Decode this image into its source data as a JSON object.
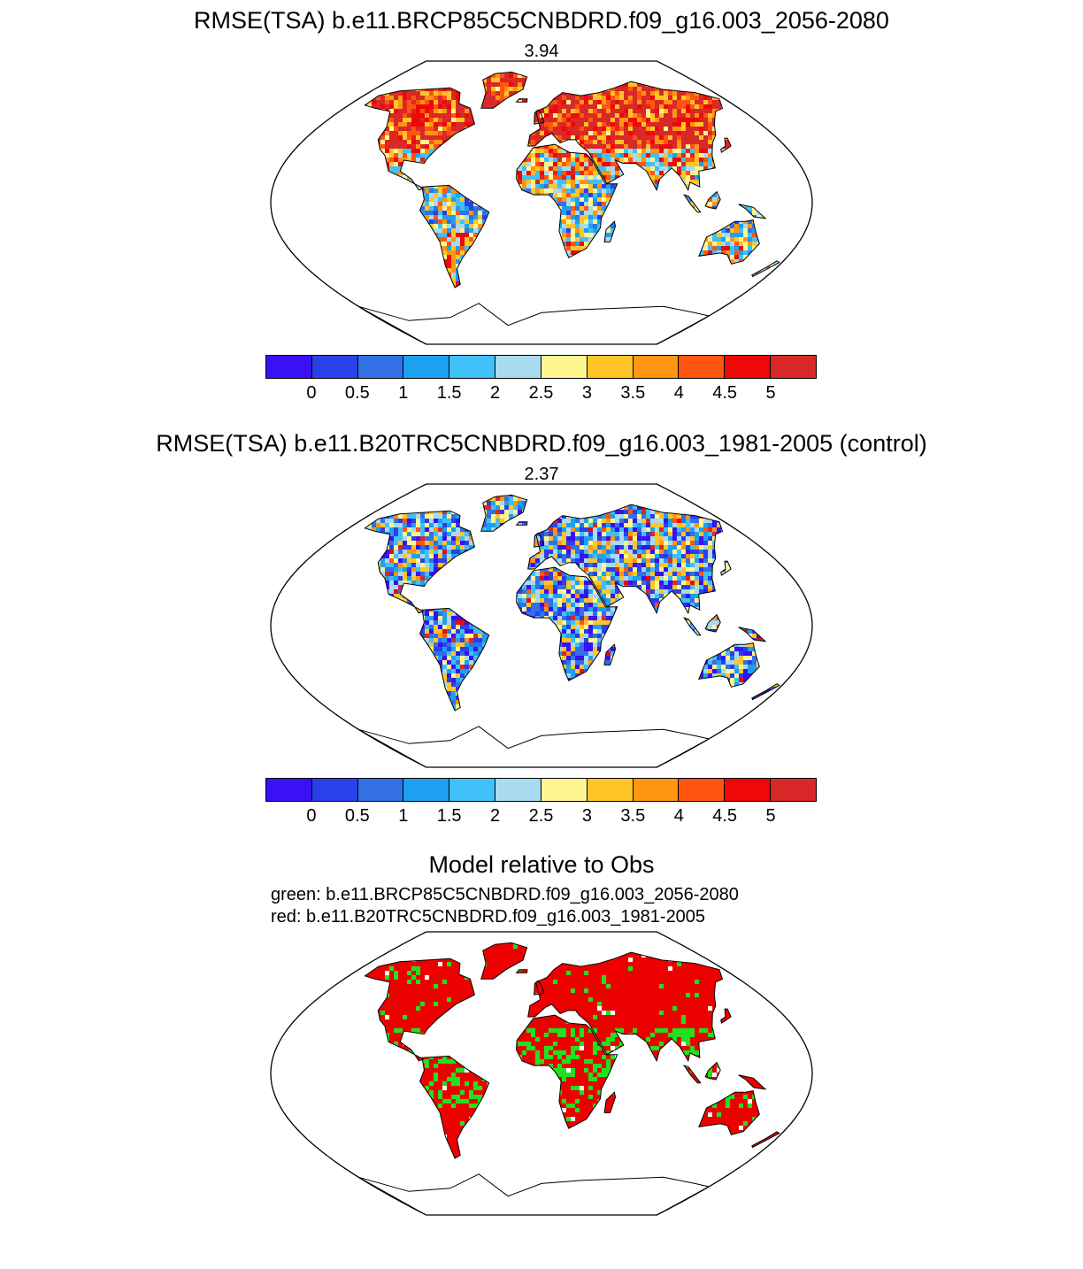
{
  "panels": [
    {
      "title": "RMSE(TSA) b.e11.BRCP85C5CNBDRD.f09_g16.003_2056-2080",
      "value": "3.94",
      "scheme": "future"
    },
    {
      "title": "RMSE(TSA) b.e11.B20TRC5CNBDRD.f09_g16.003_1981-2005 (control)",
      "value": "2.37",
      "scheme": "control"
    }
  ],
  "colorbar": {
    "colors": [
      "#3a10f5",
      "#2a40e8",
      "#3370e6",
      "#1ea0f0",
      "#40c0f8",
      "#a8daf0",
      "#fff590",
      "#ffc528",
      "#ff9510",
      "#ff5510",
      "#ee0808",
      "#d82828"
    ],
    "ticks": [
      "0",
      "0.5",
      "1",
      "1.5",
      "2",
      "2.5",
      "3",
      "3.5",
      "4",
      "4.5",
      "5"
    ]
  },
  "comparison": {
    "title": "Model relative to Obs",
    "green_label": "green: b.e11.BRCP85C5CNBDRD.f09_g16.003_2056-2080",
    "red_label": "red: b.e11.B20TRC5CNBDRD.f09_g16.003_1981-2005",
    "green_color": "#20e020",
    "red_color": "#ee0000"
  }
}
